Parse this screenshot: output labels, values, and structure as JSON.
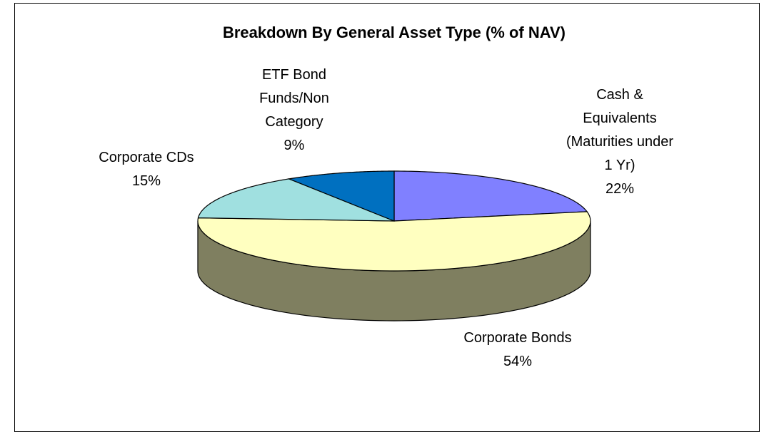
{
  "chart_data": {
    "type": "pie3d",
    "title": "Breakdown By General Asset Type (% of NAV)",
    "categories": [
      "Cash &\nEquivalents\n(Maturities under\n1 Yr)",
      "Corporate Bonds",
      "Corporate CDs",
      "ETF Bond\nFunds/Non\nCategory"
    ],
    "values": [
      22,
      54,
      15,
      9
    ],
    "value_labels": [
      "22%",
      "54%",
      "15%",
      "9%"
    ],
    "colors": [
      "#8080ff",
      "#ffffc0",
      "#a0e0e0",
      "#0070c0"
    ]
  }
}
